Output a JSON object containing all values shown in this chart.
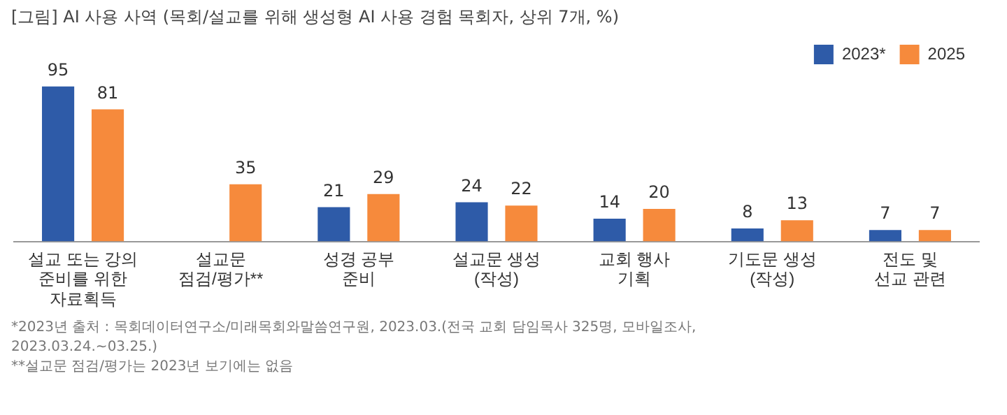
{
  "chart_data": {
    "type": "bar",
    "title": "[그림] AI 사용 사역 (목회/설교를 위해 생성형 AI 사용 경험 목회자, 상위 7개, %)",
    "categories": [
      "설교 또는 강의\n준비를 위한\n자료획득",
      "설교문\n점검/평가**",
      "성경 공부\n준비",
      "설교문 생성\n(작성)",
      "교회 행사\n기획",
      "기도문 생성\n(작성)",
      "전도 및\n선교 관련"
    ],
    "series": [
      {
        "name": "2023*",
        "color": "#2e5ba8",
        "values": [
          95,
          null,
          21,
          24,
          14,
          8,
          7
        ]
      },
      {
        "name": "2025",
        "color": "#f68a3c",
        "values": [
          81,
          35,
          29,
          22,
          20,
          13,
          7
        ]
      }
    ],
    "data_labels": true,
    "grid": false,
    "legend": "top right",
    "annotations": [
      "*2023년 출처 : 목회데이터연구소/미래목회와말씀연구원, 2023.03.(전국 교회 담임목사 325명, 모바일조사,\n2023.03.24.~03.25.)",
      "**설교문 점검/평가는 2023년 보기에는 없음"
    ]
  }
}
